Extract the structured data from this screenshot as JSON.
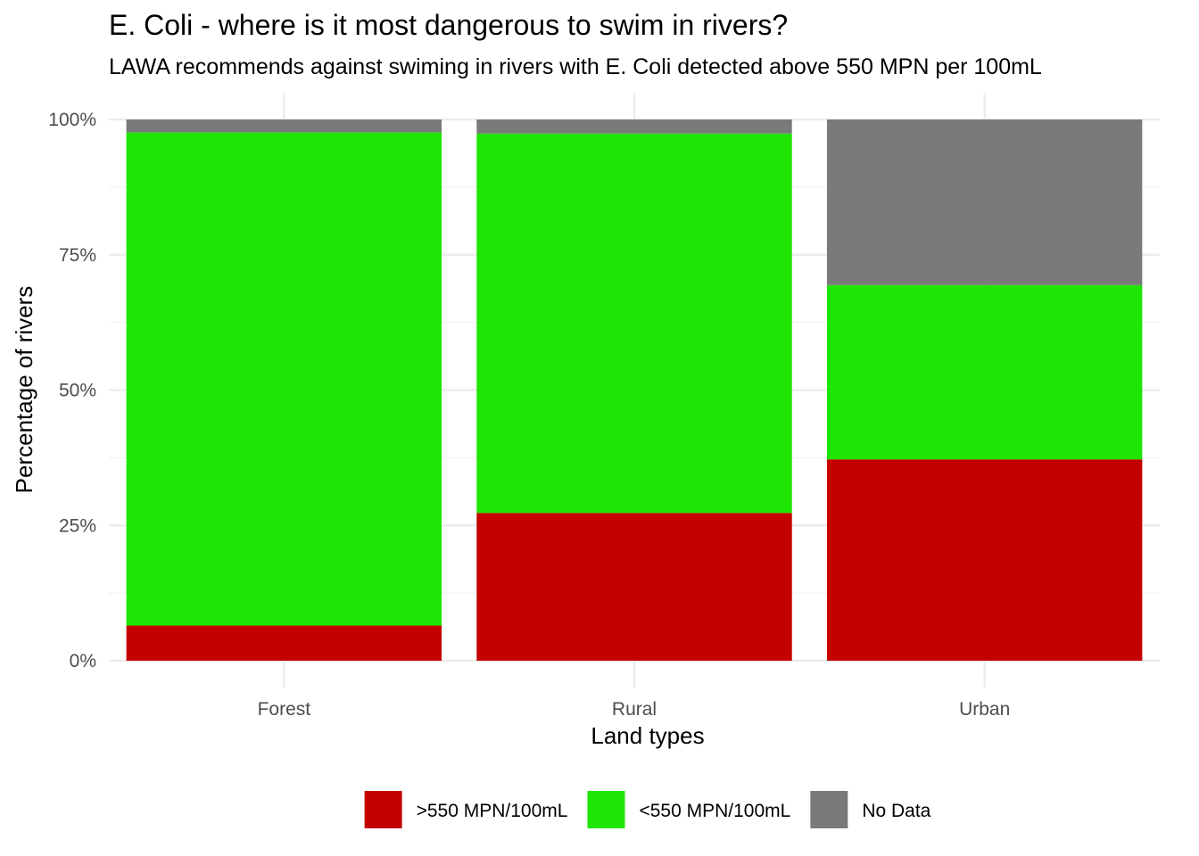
{
  "chart_data": {
    "type": "bar",
    "stacked": true,
    "title": "E. Coli - where is it most dangerous to swim in rivers?",
    "subtitle": "LAWA recommends against swiming in rivers with E. Coli detected above 550 MPN per 100mL",
    "xlabel": "Land types",
    "ylabel": "Percentage of rivers",
    "categories": [
      "Forest",
      "Rural",
      "Urban"
    ],
    "ylim": [
      0,
      1
    ],
    "y_ticks": [
      {
        "value": 0,
        "label": "0%"
      },
      {
        "value": 0.25,
        "label": "25%"
      },
      {
        "value": 0.5,
        "label": "50%"
      },
      {
        "value": 0.75,
        "label": "75%"
      },
      {
        "value": 1,
        "label": "100%"
      }
    ],
    "series": [
      {
        "name": ">550 MPN/100mL",
        "color": "#c40000",
        "values": [
          0.065,
          0.273,
          0.372
        ]
      },
      {
        "name": "<550 MPN/100mL",
        "color": "#1fe505",
        "values": [
          0.911,
          0.701,
          0.322
        ]
      },
      {
        "name": "No Data",
        "color": "#7a7a7a",
        "values": [
          0.024,
          0.026,
          0.306
        ]
      }
    ],
    "grid": true,
    "legend_position": "bottom"
  }
}
